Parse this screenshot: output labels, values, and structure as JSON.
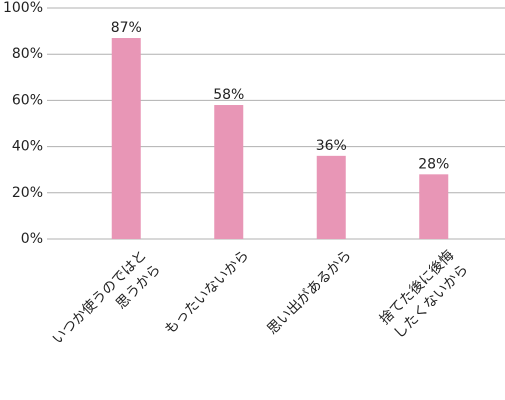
{
  "chart_data": {
    "type": "bar",
    "categories": [
      "いつか使うのではと\n思うから",
      "もったいないから",
      "思い出があるから",
      "捨てた後に後悔\nしたくないから"
    ],
    "values": [
      87,
      58,
      36,
      28
    ],
    "value_labels": [
      "87%",
      "58%",
      "36%",
      "28%"
    ],
    "color": "#e896b6",
    "ylim": [
      0,
      100
    ],
    "yticks": [
      {
        "value": 0,
        "label": "0%"
      },
      {
        "value": 20,
        "label": "20%"
      },
      {
        "value": 40,
        "label": "40%"
      },
      {
        "value": 60,
        "label": "60%"
      },
      {
        "value": 80,
        "label": "80%"
      },
      {
        "value": 100,
        "label": "100%"
      }
    ],
    "grid": true
  }
}
